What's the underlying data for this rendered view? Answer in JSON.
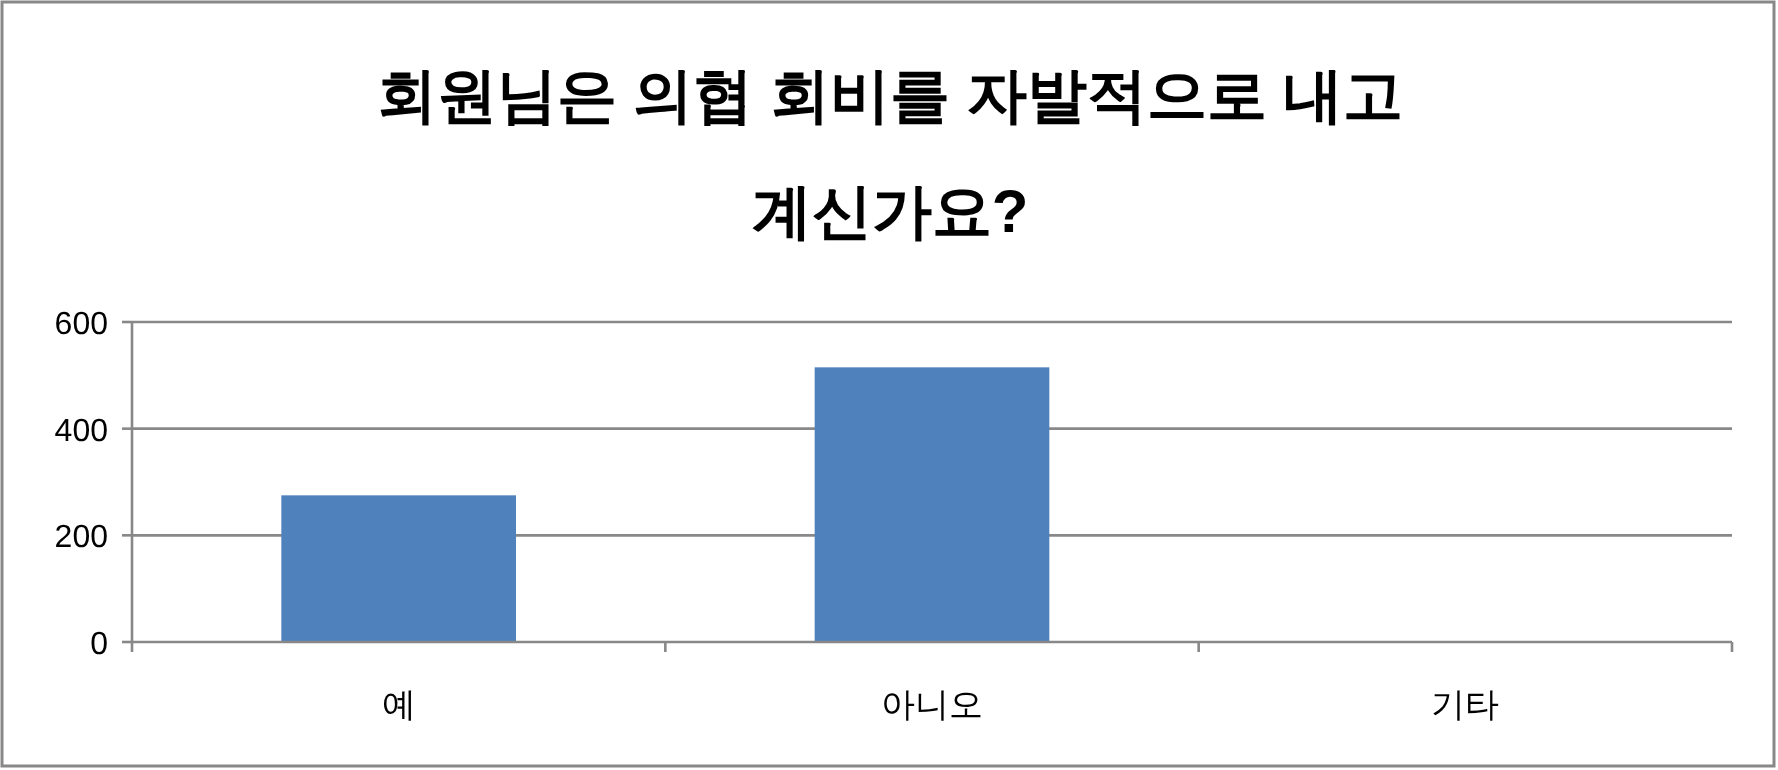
{
  "chart_data": {
    "type": "bar",
    "title": "회원님은 의협 회비를 자발적으로 내고 계신가요?",
    "categories": [
      "예",
      "아니오",
      "기타"
    ],
    "values": [
      275,
      515,
      0
    ],
    "color": "#4f81bd",
    "ylim": [
      0,
      600
    ],
    "yticks": [
      0,
      200,
      400,
      600
    ],
    "grid": "y"
  }
}
